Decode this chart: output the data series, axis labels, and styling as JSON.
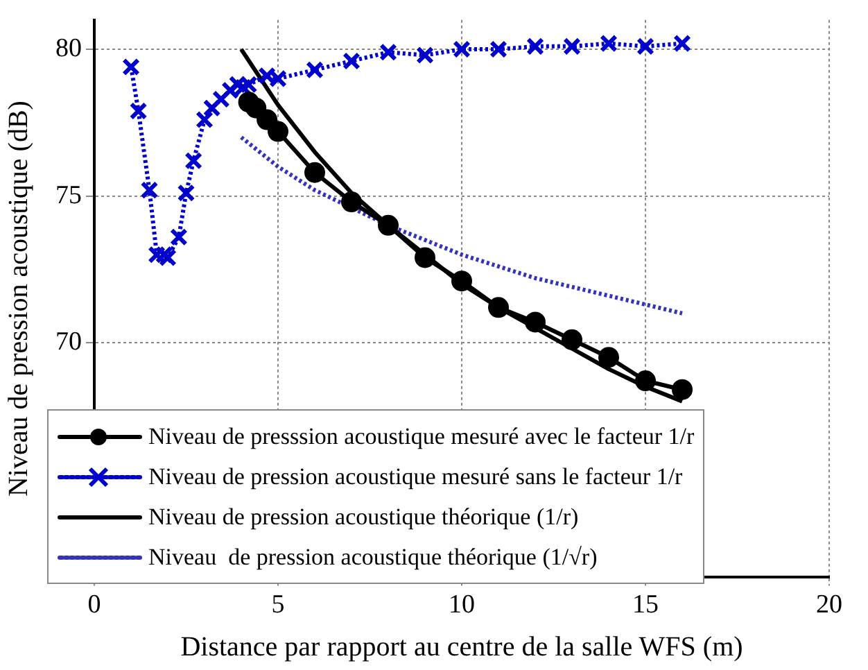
{
  "chart_data": {
    "type": "line",
    "xlabel": "Distance par rapport au centre de la salle WFS (m)",
    "ylabel": "Niveau de pression acoustique (dB)",
    "xlim": [
      0,
      20
    ],
    "ylim": [
      62,
      81
    ],
    "xticks": [
      0,
      5,
      10,
      15,
      20
    ],
    "yticks": [
      70,
      75,
      80
    ],
    "grid": true,
    "legend": "bottom",
    "series": [
      {
        "name": "Niveau de presssion acoustique mesuré avec le facteur 1/r",
        "color": "#000000",
        "marker": "circle",
        "line_style": "solid",
        "x": [
          4.2,
          4.4,
          4.7,
          5,
          6,
          7,
          8,
          9,
          10,
          11,
          12,
          13,
          14,
          15,
          16
        ],
        "values": [
          78.2,
          78,
          77.6,
          77.2,
          75.8,
          74.8,
          74,
          72.9,
          72.1,
          71.2,
          70.7,
          70.1,
          69.5,
          68.7,
          68.4
        ]
      },
      {
        "name": "Niveau de pression acoustique mesuré sans le facteur 1/r",
        "color": "#0000cc",
        "marker": "cross",
        "line_style": "dotted",
        "x": [
          1,
          1.2,
          1.5,
          1.7,
          1.9,
          2,
          2.3,
          2.5,
          2.7,
          3,
          3.2,
          3.45,
          3.7,
          3.9,
          4.05,
          4.2,
          4.7,
          5,
          6,
          7,
          8,
          9,
          10,
          11,
          12,
          13,
          14,
          15,
          16
        ],
        "values": [
          79.4,
          77.9,
          75.2,
          73,
          73,
          72.9,
          73.6,
          75.1,
          76.2,
          77.6,
          78,
          78.3,
          78.6,
          78.8,
          78.7,
          78.8,
          79.1,
          79,
          79.3,
          79.6,
          79.9,
          79.8,
          80,
          80,
          80.1,
          80.1,
          80.2,
          80.1,
          80.2
        ]
      },
      {
        "name": "Niveau de pression acoustique théorique (1/r)",
        "color": "#000000",
        "marker": "none",
        "line_style": "solid",
        "x": [
          4,
          5,
          6,
          7,
          8,
          9,
          10,
          11,
          12,
          13,
          14,
          15,
          16
        ],
        "values": [
          80,
          78.1,
          76.5,
          75.1,
          74,
          73,
          72,
          71.2,
          70.5,
          69.8,
          69.1,
          68.5,
          68
        ]
      },
      {
        "name": "Niveau  de pression acoustique théorique (1/√r)",
        "color": "#3333bb",
        "marker": "none",
        "line_style": "dotted",
        "x": [
          4,
          5,
          6,
          7,
          8,
          9,
          10,
          11,
          12,
          13,
          14,
          15,
          16
        ],
        "values": [
          77,
          76,
          75.2,
          74.6,
          74,
          73.5,
          73,
          72.6,
          72.2,
          71.9,
          71.6,
          71.3,
          71
        ]
      }
    ]
  }
}
